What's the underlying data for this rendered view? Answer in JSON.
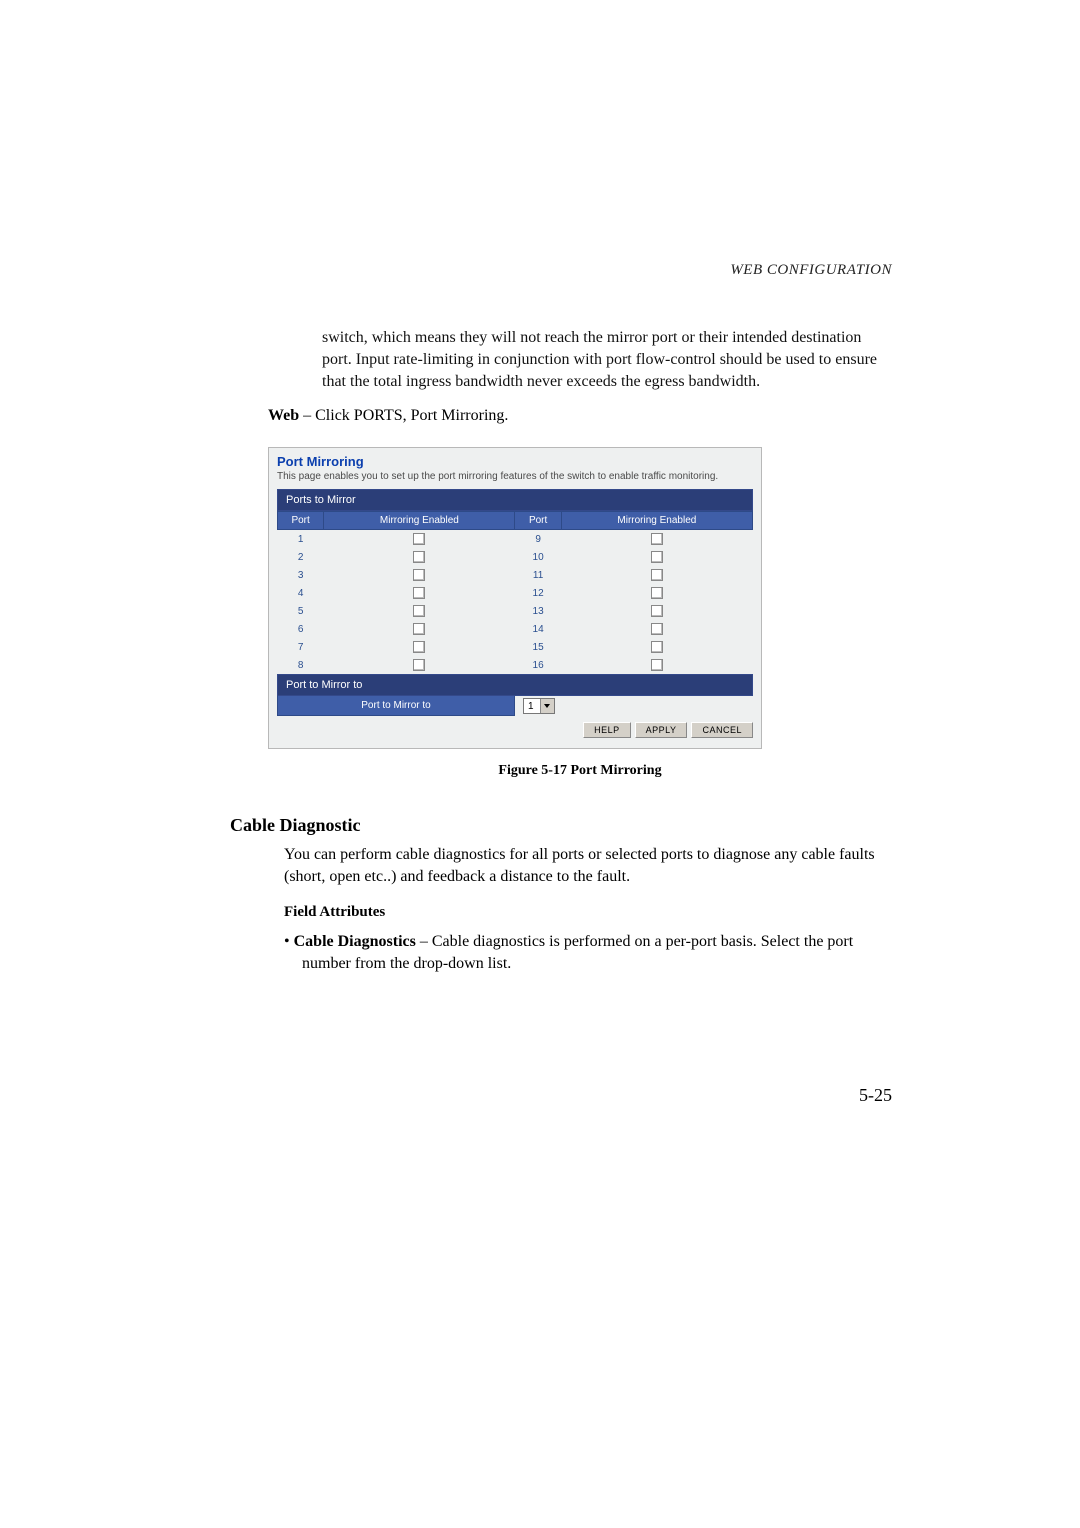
{
  "running_head": "WEB CONFIGURATION",
  "intro_continuation": "switch, which means they will not reach the mirror port or their intended destination port. Input rate-limiting in conjunction with port flow-control should be used to ensure that the total ingress bandwidth never exceeds the egress bandwidth.",
  "web_label": "Web",
  "web_rest": " – Click PORTS, Port Mirroring.",
  "shot": {
    "title": "Port Mirroring",
    "subtitle": "This page enables you to set up the port mirroring features of the switch to enable traffic monitoring.",
    "section1": "Ports to Mirror",
    "col_port": "Port",
    "col_enabled": "Mirroring Enabled",
    "rows_left": [
      "1",
      "2",
      "3",
      "4",
      "5",
      "6",
      "7",
      "8"
    ],
    "rows_right": [
      "9",
      "10",
      "11",
      "12",
      "13",
      "14",
      "15",
      "16"
    ],
    "section2": "Port to Mirror to",
    "mirror_to_label": "Port to Mirror to",
    "mirror_to_value": "1",
    "btn_help": "HELP",
    "btn_apply": "APPLY",
    "btn_cancel": "CANCEL"
  },
  "figure_caption": "Figure 5-17  Port Mirroring",
  "h2": "Cable Diagnostic",
  "cable_body": "You can perform cable diagnostics for all ports or selected ports to diagnose any cable faults (short, open etc..) and feedback a distance to the fault.",
  "field_attributes": "Field Attributes",
  "attr_label": "Cable Diagnostics",
  "attr_rest": " – Cable diagnostics is performed on a per-port basis. Select the port number from the drop-down list.",
  "page_number": "5-25"
}
